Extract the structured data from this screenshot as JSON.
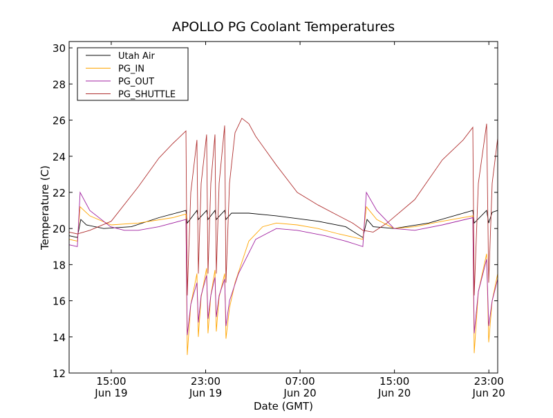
{
  "chart_data": {
    "type": "line",
    "title": "APOLLO PG Coolant Temperatures",
    "xlabel": "Date (GMT)",
    "ylabel": "Temperature (C)",
    "x_units": "hours since Jun 19 00:00 GMT",
    "xlim": [
      11.43,
      47.75
    ],
    "ylim": [
      12,
      30.35
    ],
    "yticks": [
      12,
      14,
      16,
      18,
      20,
      22,
      24,
      26,
      28,
      30
    ],
    "xticks": [
      {
        "x": 15,
        "time": "15:00",
        "date": "Jun 19"
      },
      {
        "x": 23,
        "time": "23:00",
        "date": "Jun 19"
      },
      {
        "x": 31,
        "time": "07:00",
        "date": "Jun 20"
      },
      {
        "x": 39,
        "time": "15:00",
        "date": "Jun 20"
      },
      {
        "x": 47,
        "time": "23:00",
        "date": "Jun 20"
      }
    ],
    "grid": false,
    "legend_position": "top-left",
    "series": [
      {
        "name": "Utah Air",
        "color": "#000000",
        "x": [
          11.43,
          12.13,
          12.42,
          12.89,
          14.36,
          16.7,
          19.04,
          21.33,
          21.44,
          22.26,
          22.38,
          23.08,
          23.2,
          23.79,
          23.9,
          24.61,
          24.72,
          25.19,
          26.66,
          29.0,
          32.52,
          34.86,
          36.32,
          36.68,
          37.2,
          38.96,
          41.89,
          45.64,
          45.76,
          46.81,
          46.99,
          47.28,
          47.75
        ],
        "y": [
          19.6,
          19.5,
          20.5,
          20.2,
          20.0,
          20.1,
          20.6,
          21.0,
          20.3,
          21.0,
          20.5,
          21.0,
          20.5,
          21.0,
          20.5,
          21.0,
          20.5,
          20.85,
          20.85,
          20.7,
          20.4,
          20.1,
          19.5,
          20.5,
          20.1,
          20.0,
          20.3,
          21.0,
          20.3,
          21.0,
          20.3,
          20.9,
          21.0
        ]
      },
      {
        "name": "PG_IN",
        "color": "#ffa500",
        "x": [
          11.43,
          12.13,
          12.36,
          13.18,
          15.0,
          17.28,
          20.21,
          21.33,
          21.44,
          21.74,
          22.26,
          22.38,
          22.62,
          23.08,
          23.2,
          23.44,
          23.79,
          23.9,
          24.14,
          24.61,
          24.72,
          25.02,
          25.49,
          26.66,
          27.83,
          29.0,
          30.76,
          32.52,
          34.27,
          36.32,
          36.62,
          37.5,
          38.96,
          40.72,
          43.06,
          45.64,
          45.76,
          46.11,
          46.81,
          46.99,
          47.28,
          47.75
        ],
        "y": [
          19.4,
          19.3,
          21.2,
          20.7,
          20.2,
          20.3,
          20.6,
          20.8,
          13.0,
          15.8,
          17.5,
          14.0,
          16.2,
          17.8,
          14.2,
          16.3,
          17.7,
          14.3,
          16.2,
          17.5,
          13.9,
          15.6,
          17.0,
          19.3,
          20.1,
          20.3,
          20.2,
          20.0,
          19.7,
          19.4,
          21.2,
          20.5,
          20.0,
          20.1,
          20.4,
          20.7,
          13.1,
          16.5,
          18.6,
          13.7,
          16.0,
          17.5
        ]
      },
      {
        "name": "PG_OUT",
        "color": "#a020a0",
        "x": [
          11.43,
          12.13,
          12.36,
          13.18,
          14.94,
          16.11,
          17.28,
          19.04,
          21.33,
          21.44,
          21.74,
          22.26,
          22.38,
          22.62,
          23.08,
          23.2,
          23.44,
          23.79,
          23.9,
          24.14,
          24.61,
          24.72,
          25.02,
          25.78,
          27.24,
          29.0,
          30.76,
          33.1,
          34.86,
          36.32,
          36.62,
          37.5,
          38.96,
          40.72,
          43.06,
          45.64,
          45.76,
          46.11,
          46.81,
          46.99,
          47.28,
          47.75
        ],
        "y": [
          19.1,
          19.0,
          22.0,
          21.0,
          20.1,
          19.9,
          19.9,
          20.1,
          20.5,
          14.1,
          15.8,
          17.0,
          14.8,
          16.3,
          17.4,
          15.0,
          16.3,
          17.3,
          15.1,
          16.3,
          17.2,
          14.6,
          16.0,
          17.5,
          19.4,
          20.0,
          19.9,
          19.6,
          19.3,
          19.0,
          22.0,
          21.0,
          20.0,
          19.9,
          20.2,
          20.6,
          14.2,
          16.5,
          18.3,
          14.6,
          16.0,
          17.2
        ]
      },
      {
        "name": "PG_SHUTTLE",
        "color": "#b03030",
        "x": [
          11.43,
          12.13,
          13.18,
          15.0,
          17.28,
          19.04,
          20.21,
          21.33,
          21.44,
          21.74,
          22.26,
          22.38,
          22.62,
          23.08,
          23.2,
          23.44,
          23.79,
          23.9,
          24.14,
          24.61,
          24.72,
          25.02,
          25.49,
          26.07,
          26.66,
          27.24,
          29.0,
          30.76,
          32.52,
          34.27,
          35.45,
          36.32,
          37.2,
          38.37,
          40.72,
          43.06,
          44.82,
          45.64,
          45.76,
          46.11,
          46.81,
          46.99,
          47.28,
          47.75
        ],
        "y": [
          19.8,
          19.7,
          19.9,
          20.4,
          22.3,
          23.9,
          24.7,
          25.4,
          16.3,
          22.0,
          24.9,
          17.5,
          22.5,
          25.2,
          17.5,
          22.5,
          25.2,
          17.5,
          22.5,
          25.7,
          17.0,
          22.5,
          25.3,
          26.1,
          25.8,
          25.1,
          23.5,
          22.0,
          21.3,
          20.7,
          20.3,
          19.9,
          19.8,
          20.3,
          21.6,
          23.8,
          24.9,
          25.6,
          16.3,
          22.5,
          25.8,
          17.0,
          22.5,
          25.0
        ]
      }
    ]
  }
}
